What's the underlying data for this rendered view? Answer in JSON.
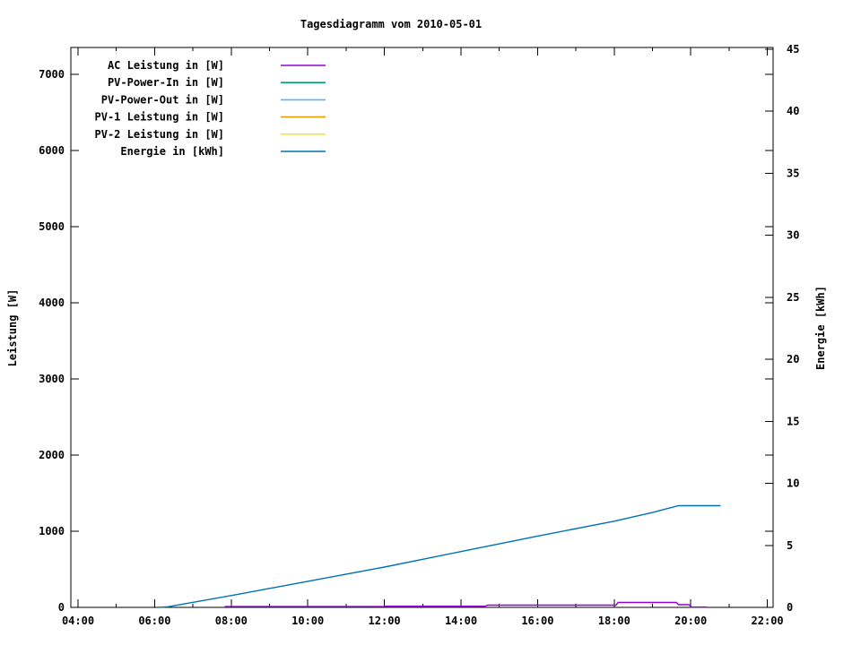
{
  "window": {
    "title": "Tagesdiagramm vom 2010-05-01"
  },
  "chart_data": {
    "type": "line",
    "title": "Tagesdiagramm vom 2010-05-01",
    "grid": false,
    "legend_position": "top-left-inside",
    "x_axis": {
      "unit": "time",
      "tick_labels": [
        "04:00",
        "06:00",
        "08:00",
        "10:00",
        "12:00",
        "14:00",
        "16:00",
        "18:00",
        "20:00",
        "22:00"
      ],
      "tick_hours": [
        4,
        6,
        8,
        10,
        12,
        14,
        16,
        18,
        20,
        22
      ],
      "minor_tick_hours": [
        5,
        7,
        9,
        11,
        13,
        15,
        17,
        19,
        21
      ],
      "range_hours": [
        3.8,
        22.16
      ]
    },
    "y_axis_left": {
      "label": "Leistung [W]",
      "tick_labels": [
        "0",
        "1000",
        "2000",
        "3000",
        "4000",
        "5000",
        "6000",
        "7000"
      ],
      "tick_values": [
        0,
        1000,
        2000,
        3000,
        4000,
        5000,
        6000,
        7000
      ],
      "range": [
        0,
        7350
      ]
    },
    "y_axis_right": {
      "label": "Energie [kWh]",
      "tick_labels": [
        "0",
        "5",
        "10",
        "15",
        "20",
        "25",
        "30",
        "35",
        "40",
        "45"
      ],
      "tick_values": [
        0,
        5,
        10,
        15,
        20,
        25,
        30,
        35,
        40,
        45
      ],
      "range": [
        0,
        45.15
      ]
    },
    "series": [
      {
        "name": "AC Leistung in [W]",
        "color": "#9400d3",
        "axis": "left",
        "visible": true,
        "points": [
          [
            7.83,
            10
          ],
          [
            12.0,
            10
          ],
          [
            12.05,
            15
          ],
          [
            14.63,
            15
          ],
          [
            14.7,
            30
          ],
          [
            18.05,
            30
          ],
          [
            18.1,
            65
          ],
          [
            19.62,
            65
          ],
          [
            19.68,
            35
          ],
          [
            19.95,
            35
          ],
          [
            20.02,
            3
          ],
          [
            20.42,
            3
          ]
        ]
      },
      {
        "name": "PV-Power-In in [W]",
        "color": "#009e73",
        "axis": "left",
        "visible": false,
        "points": []
      },
      {
        "name": "PV-Power-Out in [W]",
        "color": "#56b4e9",
        "axis": "left",
        "visible": false,
        "points": []
      },
      {
        "name": "PV-1 Leistung in [W]",
        "color": "#e69f00",
        "axis": "left",
        "visible": false,
        "points": []
      },
      {
        "name": "PV-2 Leistung in [W]",
        "color": "#f0e442",
        "axis": "left",
        "visible": false,
        "points": []
      },
      {
        "name": "Energie in [kWh]",
        "color": "#0072b2",
        "axis": "right",
        "visible": true,
        "points": [
          [
            6.1,
            0.0
          ],
          [
            6.35,
            0.05
          ],
          [
            8.0,
            0.95
          ],
          [
            10.0,
            2.1
          ],
          [
            12.0,
            3.25
          ],
          [
            14.0,
            4.5
          ],
          [
            16.0,
            5.75
          ],
          [
            18.0,
            6.95
          ],
          [
            19.0,
            7.65
          ],
          [
            19.68,
            8.2
          ],
          [
            20.78,
            8.2
          ]
        ]
      }
    ]
  }
}
